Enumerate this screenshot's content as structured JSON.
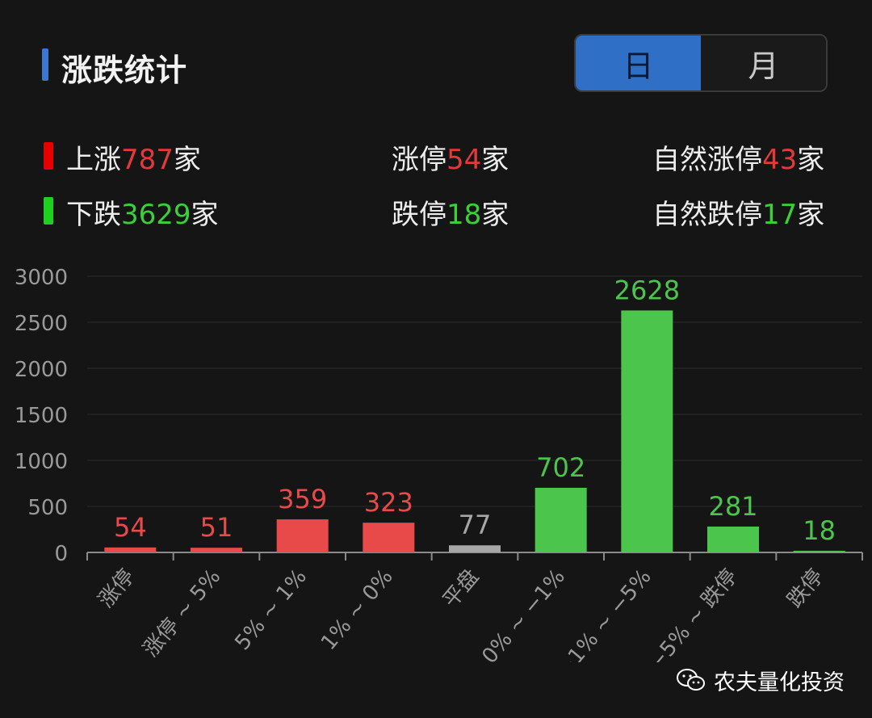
{
  "header": {
    "title": "涨跌统计"
  },
  "toggle": {
    "day": "日",
    "month": "月",
    "selected": "日"
  },
  "stats": {
    "up": {
      "prefix": "上涨",
      "value": "787",
      "suffix": "家"
    },
    "limit_up": {
      "prefix": "涨停",
      "value": "54",
      "suffix": "家"
    },
    "natural_limit_up": {
      "prefix": "自然涨停",
      "value": "43",
      "suffix": "家"
    },
    "down": {
      "prefix": "下跌",
      "value": "3629",
      "suffix": "家"
    },
    "limit_down": {
      "prefix": "跌停",
      "value": "18",
      "suffix": "家"
    },
    "natural_limit_down": {
      "prefix": "自然跌停",
      "value": "17",
      "suffix": "家"
    }
  },
  "colors": {
    "up": "#e84a4a",
    "flat": "#a6a6a6",
    "down": "#4cc54c",
    "accent": "#2f6fc6"
  },
  "chart_data": {
    "type": "bar",
    "categories": [
      "涨停",
      "涨停 ~ 5%",
      "5% ~ 1%",
      "1% ~ 0%",
      "平盘",
      "0% ~ −1%",
      "−1% ~ −5%",
      "−5% ~ 跌停",
      "跌停"
    ],
    "values": [
      54,
      51,
      359,
      323,
      77,
      702,
      2628,
      281,
      18
    ],
    "value_labels": [
      "54",
      "51",
      "359",
      "323",
      "77",
      "702",
      "2628",
      "281",
      "18"
    ],
    "bar_colors": [
      "up",
      "up",
      "up",
      "up",
      "flat",
      "down",
      "down",
      "down",
      "down"
    ],
    "yticks": [
      "0",
      "500",
      "1000",
      "1500",
      "2000",
      "2500",
      "3000"
    ],
    "ylim": [
      0,
      3000
    ],
    "grid": true
  },
  "watermark": {
    "icon": "wechat-icon",
    "text": "农夫量化投资"
  }
}
